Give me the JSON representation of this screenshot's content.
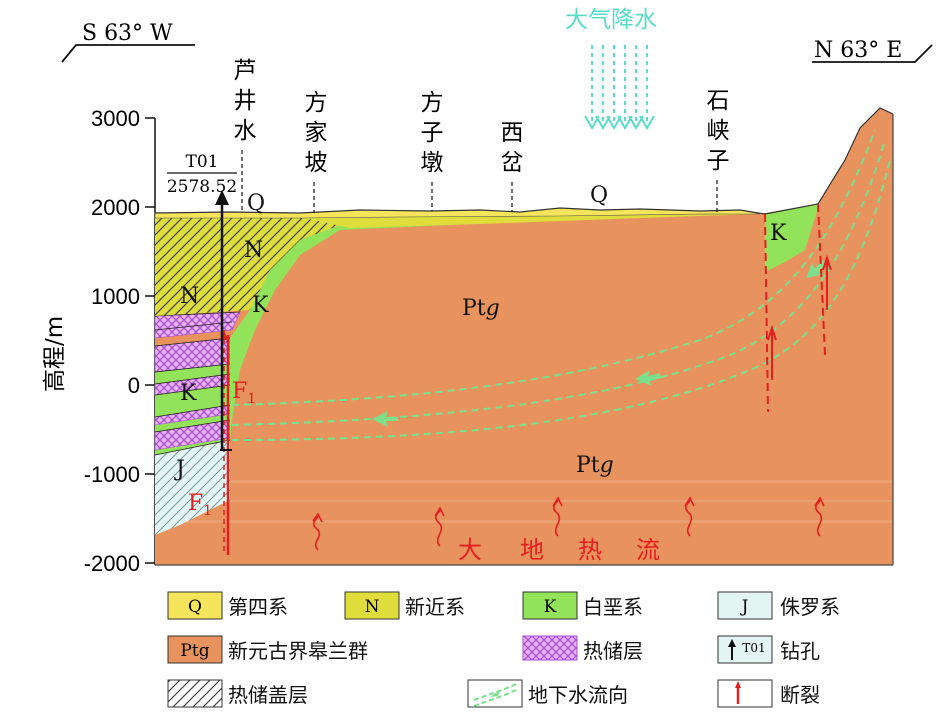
{
  "direction": {
    "left": "S 63° W",
    "right": "N 63° E"
  },
  "y_axis": {
    "label": "高程/m",
    "ticks": [
      "3000",
      "2000",
      "1000",
      "0",
      "-1000",
      "-2000"
    ]
  },
  "precipitation_label": "大气降水",
  "places": [
    "芦",
    "井",
    "水",
    "方",
    "家",
    "坡",
    "方",
    "子",
    "墩",
    "西",
    "岔",
    "石",
    "峡",
    "子"
  ],
  "borehole": {
    "id": "T01",
    "elevation": "2578.52"
  },
  "unit_labels": {
    "q1": "Q",
    "q2": "Q",
    "n1": "N",
    "n2": "N",
    "k1": "K",
    "k2": "K",
    "k3": "K",
    "j": "J",
    "ptg1": "Pt",
    "ptg1_sub": "g",
    "ptg2": "Pt",
    "ptg2_sub": "g"
  },
  "fault_labels": {
    "f1_upper": "F",
    "f1_upper_sub": "1",
    "f1_lower": "F",
    "f1_lower_sub": "1"
  },
  "heat_flow_label": [
    "大",
    "地",
    "热",
    "流"
  ],
  "legend": [
    {
      "key": "Q",
      "label": "第四系"
    },
    {
      "key": "N",
      "label": "新近系"
    },
    {
      "key": "K",
      "label": "白垩系"
    },
    {
      "key": "J",
      "label": "侏罗系"
    },
    {
      "key": "Ptg",
      "label": "新元古界皋兰群"
    },
    {
      "key": "reservoir",
      "label": "热储层"
    },
    {
      "key": "borehole",
      "symbol_text": "T01",
      "label": "钻孔"
    },
    {
      "key": "caprock",
      "label": "热储盖层"
    },
    {
      "key": "groundwater",
      "label": "地下水流向"
    },
    {
      "key": "fault",
      "label": "断裂"
    }
  ],
  "colors": {
    "Q": "#f6e45a",
    "N": "#dedd3c",
    "K": "#93e35a",
    "J": "#e3f4f3",
    "Ptg": "#e8935d",
    "reservoir": "#b86fd8",
    "fault": "#e41f1f",
    "groundwater": "#7be08a",
    "precipitation": "#59dcc6"
  }
}
